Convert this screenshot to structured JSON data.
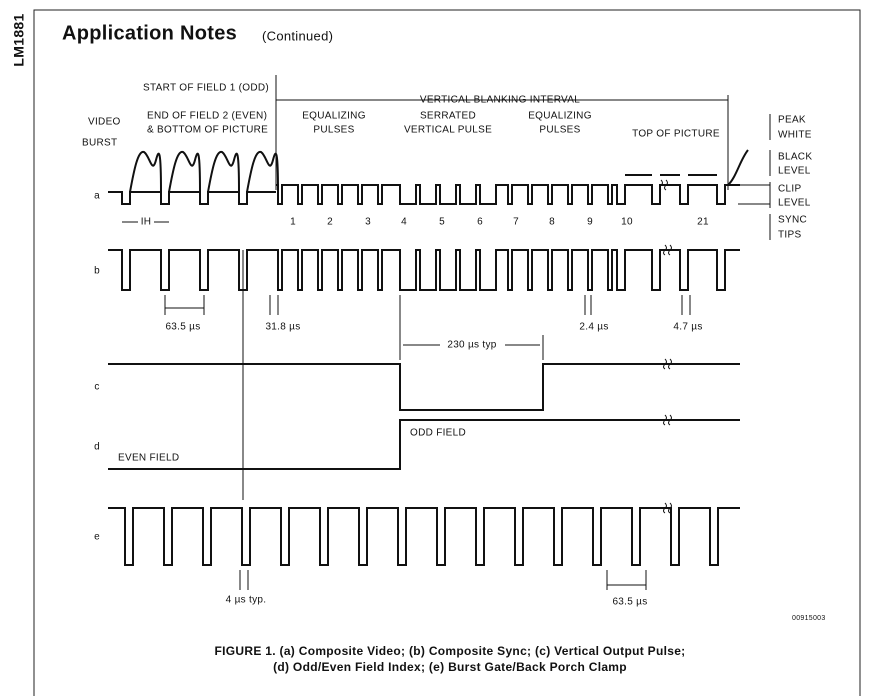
{
  "side_label": "LM1881",
  "header": {
    "title": "Application Notes",
    "subtitle": "(Continued)"
  },
  "figure": {
    "labels": [
      "START OF FIELD 1 (ODD)",
      "VERTICAL BLANKING INTERVAL",
      "VIDEO",
      "BURST",
      "END OF FIELD 2 (EVEN)",
      "& BOTTOM OF PICTURE",
      "EQUALIZING",
      "PULSES",
      "SERRATED",
      "VERTICAL PULSE",
      "EQUALIZING",
      "PULSES",
      "TOP OF PICTURE",
      "PEAK",
      "WHITE",
      "BLACK",
      "LEVEL",
      "CLIP",
      "LEVEL",
      "SYNC",
      "TIPS",
      "IH"
    ],
    "line_numbers": [
      "1",
      "2",
      "3",
      "4",
      "5",
      "6",
      "7",
      "8",
      "9",
      "10",
      "21"
    ],
    "row_labels": [
      "a",
      "b",
      "c",
      "d",
      "e"
    ],
    "measurements": [
      "63.5 µs",
      "31.8 µs",
      "2.4 µs",
      "4.7 µs",
      "230 µs typ",
      "4 µs typ.",
      "63.5 µs"
    ],
    "field_labels": [
      "ODD FIELD",
      "EVEN FIELD"
    ],
    "code": "00915003"
  },
  "caption": {
    "lines": [
      "FIGURE 1. (a) Composite Video; (b) Composite Sync; (c) Vertical Output Pulse;",
      "(d) Odd/Even Field Index; (e) Burst Gate/Back Porch Clamp"
    ]
  }
}
